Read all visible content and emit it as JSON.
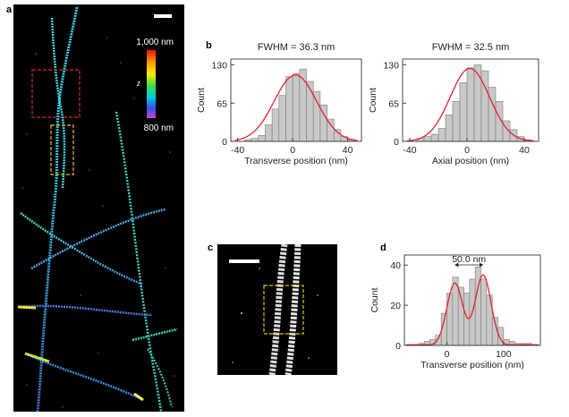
{
  "panel_labels": {
    "a": "a",
    "b": "b",
    "c": "c",
    "d": "d"
  },
  "colorbar": {
    "top_label": "1,000 nm",
    "bottom_label": "800 nm",
    "symbol": "z"
  },
  "colors": {
    "bar_fill": "#c8c8c8",
    "bar_stroke": "#7a7a7a",
    "fit_line": "#e8202a",
    "box_red": "#d92b2b",
    "box_yellow": "#e5c21a"
  },
  "chart_data": [
    {
      "id": "b-left",
      "type": "bar",
      "title": "FWHM  = 36.3 nm",
      "xlabel": "Transverse position (nm)",
      "ylabel": "Count",
      "xlim": [
        -45,
        50
      ],
      "ylim": [
        0,
        140
      ],
      "xticks": [
        -40,
        0,
        40
      ],
      "yticks": [
        0,
        65,
        130
      ],
      "bin_width": 5,
      "bin_starts": [
        -35,
        -30,
        -25,
        -20,
        -15,
        -10,
        -5,
        0,
        5,
        10,
        15,
        20,
        25,
        30,
        35,
        40
      ],
      "values": [
        3,
        5,
        10,
        28,
        55,
        78,
        110,
        115,
        123,
        102,
        85,
        62,
        38,
        20,
        8,
        3
      ],
      "fit": {
        "type": "gaussian",
        "amplitude": 113,
        "mean": 2,
        "sigma": 15.4
      }
    },
    {
      "id": "b-right",
      "type": "bar",
      "title": "FWHM  = 32.5 nm",
      "xlabel": "Axial position (nm)",
      "ylabel": "Count",
      "xlim": [
        -45,
        50
      ],
      "ylim": [
        0,
        140
      ],
      "xticks": [
        -40,
        0,
        40
      ],
      "yticks": [
        0,
        65,
        130
      ],
      "bin_width": 5,
      "bin_starts": [
        -35,
        -30,
        -25,
        -20,
        -15,
        -10,
        -5,
        0,
        5,
        10,
        15,
        20,
        25,
        30,
        35,
        40
      ],
      "values": [
        5,
        8,
        12,
        22,
        45,
        68,
        100,
        125,
        130,
        120,
        92,
        68,
        35,
        20,
        8,
        3
      ],
      "fit": {
        "type": "gaussian",
        "amplitude": 124,
        "mean": 2,
        "sigma": 13.8
      }
    },
    {
      "id": "d",
      "type": "bar",
      "annotation": "50.0 nm",
      "xlabel": "Transverse position (nm)",
      "ylabel": "Count",
      "xlim": [
        -75,
        165
      ],
      "ylim": [
        0,
        45
      ],
      "xticks": [
        0,
        100
      ],
      "yticks": [
        0,
        20,
        40
      ],
      "bin_width": 10,
      "bin_starts": [
        -50,
        -40,
        -30,
        -20,
        -10,
        0,
        10,
        20,
        30,
        40,
        50,
        60,
        70,
        80,
        90,
        100,
        110,
        120,
        130,
        140
      ],
      "values": [
        1,
        2,
        3,
        5,
        16,
        26,
        34,
        29,
        26,
        33,
        39,
        33,
        25,
        14,
        9,
        3,
        2,
        1,
        1,
        1
      ],
      "fit": {
        "type": "double-gaussian",
        "a1": 31,
        "m1": 14,
        "s1": 14,
        "a2": 35,
        "m2": 64,
        "s2": 14,
        "separation_arrow": [
          14,
          64
        ]
      }
    }
  ]
}
